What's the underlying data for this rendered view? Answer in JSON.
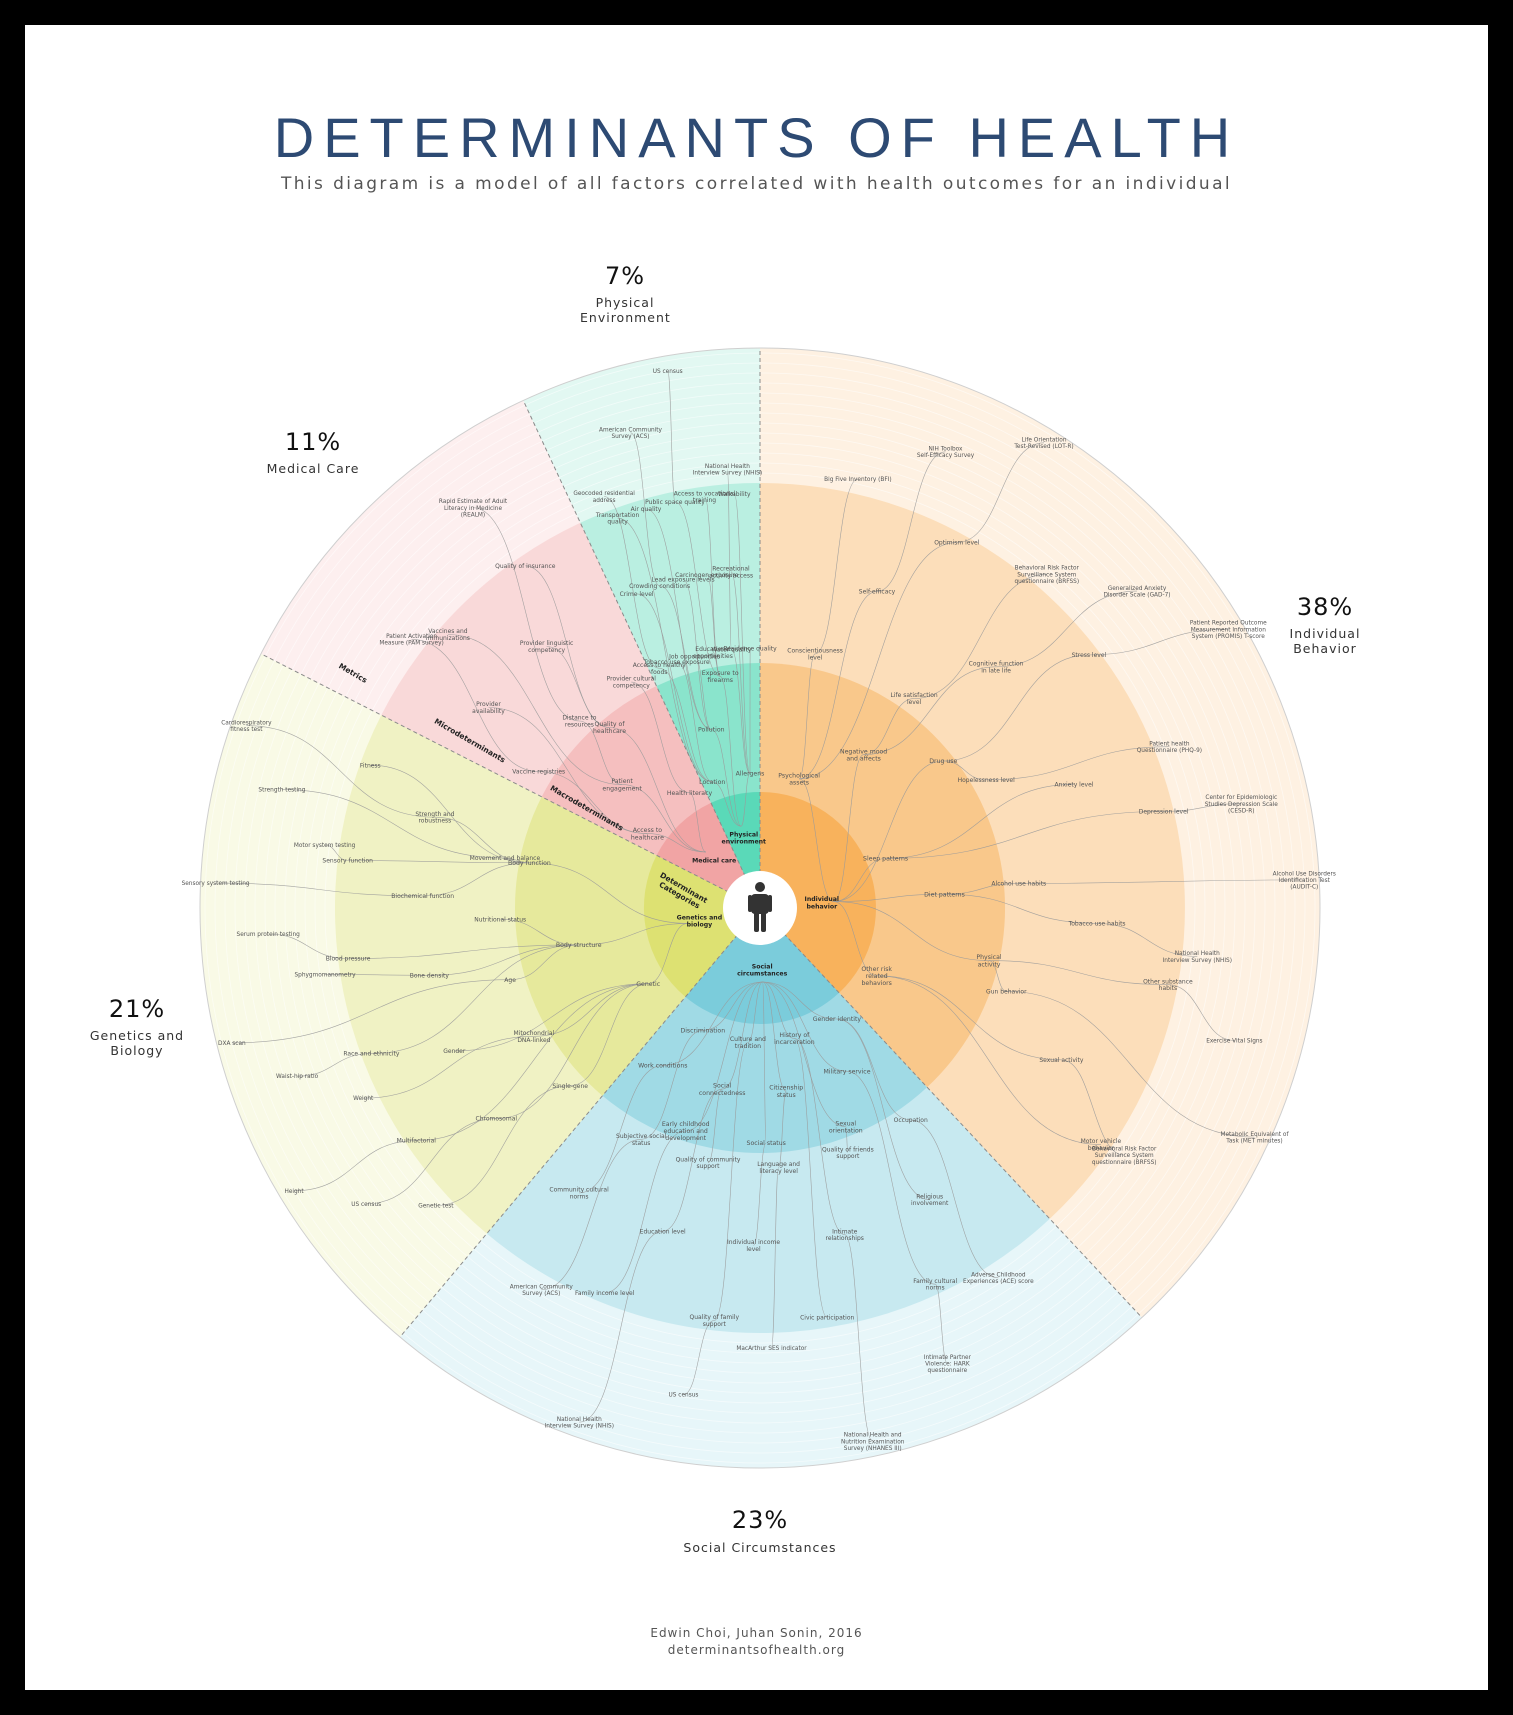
{
  "title": "DETERMINANTS OF HEALTH",
  "subtitle": "This diagram is a model of all factors correlated with health outcomes for an individual",
  "credit": {
    "authors": "Edwin Choi, Juhan Sonin, 2016",
    "url": "determinantsofhealth.org"
  },
  "ring_labels": {
    "metrics": "Metrics",
    "micro": "Microdeterminants",
    "macro": "Macrodeterminants",
    "categories": "Determinant Categories"
  },
  "sectors": [
    {
      "key": "individual",
      "percent": "38%",
      "label": "Individual Behavior",
      "category": "Individual behavior",
      "color": "#f6a94a"
    },
    {
      "key": "social",
      "percent": "23%",
      "label": "Social Circumstances",
      "category": "Social circumstances",
      "color": "#6cc6d7"
    },
    {
      "key": "genetics",
      "percent": "21%",
      "label": "Genetics and Biology",
      "category": "Genetics and biology",
      "color": "#d9de63"
    },
    {
      "key": "medical",
      "percent": "11%",
      "label": "Medical Care",
      "category": "Medical care",
      "color": "#f09a9a"
    },
    {
      "key": "physical",
      "percent": "7%",
      "label": "Physical Environment",
      "category": "Physical environment",
      "color": "#48d4b0"
    }
  ],
  "macro": {
    "individual": [
      "Psychological assets",
      "Negative mood and affects",
      "Drug use",
      "Sleep patterns",
      "Diet patterns",
      "Physical activity",
      "Other risk related behaviors"
    ],
    "social": [
      "Gender identity",
      "Military service",
      "Sexual orientation",
      "History of incarceration",
      "Citizenship status",
      "Social status",
      "Culture and tradition",
      "Social connectedness",
      "Early childhood education and development",
      "Discrimination",
      "Work conditions"
    ],
    "genetics": [
      "Genetic",
      "Body structure",
      "Body function"
    ],
    "medical": [
      "Access to healthcare",
      "Patient engagement",
      "Quality of healthcare",
      "Health literacy"
    ],
    "physical": [
      "Location",
      "Pollution",
      "Exposure to firearms",
      "Allergens"
    ]
  },
  "micro": {
    "individual": [
      "Conscientiousness level",
      "Self-efficacy",
      "Optimism level",
      "Life satisfaction level",
      "Cognitive function in late life",
      "Stress level",
      "Hopelessness level",
      "Anxiety level",
      "Depression level",
      "Alcohol use habits",
      "Tobacco use habits",
      "Other substance habits",
      "Gun behavior",
      "Sexual activity",
      "Motor vehicle behavior"
    ],
    "social": [
      "Occupation",
      "Religious involvement",
      "Family cultural norms",
      "Quality of friends support",
      "Intimate relationships",
      "Civic participation",
      "Language and literacy level",
      "Individual income level",
      "Quality of family support",
      "Quality of community support",
      "Education level",
      "Family income level",
      "Subjective social status",
      "Community cultural norms"
    ],
    "genetics": [
      "Single-gene",
      "Chromosomal",
      "Multifactorial",
      "Mitochondrial DNA-linked",
      "Gender",
      "Race and ethnicity",
      "Age",
      "Bone density",
      "Blood pressure",
      "Nutritional status",
      "Biochemical function",
      "Sensory function",
      "Movement and balance",
      "Strength and robustness",
      "Fitness"
    ],
    "medical": [
      "Vaccine registries",
      "Provider availability",
      "Vaccines and immunizations",
      "Distance to resources",
      "Provider linguistic competency",
      "Quality of insurance",
      "Provider cultural competency"
    ],
    "physical": [
      "Access to healthy foods",
      "Crime level",
      "Transportation quality",
      "Tobacco use exposure",
      "Crowding conditions",
      "Air quality",
      "Job opportunities",
      "Lead exposure levels",
      "Public space quality",
      "Educational opportunities",
      "Carcinogen exposure",
      "Access to vocational training",
      "Water quality",
      "Recreational activity access",
      "Walkability",
      "Residence quality"
    ]
  },
  "metrics": {
    "individual": [
      "Big Five Inventory (BFI)",
      "NIH Toolbox Self-Efficacy Survey",
      "Life Orientation Test-Revised (LOT-R)",
      "Behavioral Risk Factor Surveillance System questionnaire (BRFSS)",
      "Generalized Anxiety Disorder Scale (GAD-7)",
      "Patient Reported Outcome Measurement Information System (PROMIS) T-score",
      "Patient health Questionnaire (PHQ-9)",
      "Center for Epidemiologic Studies Depression Scale (CESD-R)",
      "Alcohol Use Disorders Identification Test (AUDIT-C)",
      "National Health Interview Survey (NHIS)",
      "Exercise Vital Signs",
      "Metabolic Equivalent of Task (MET minutes)",
      "Behavioral Risk Factor Surveillance System questionnaire (BRFSS)"
    ],
    "social": [
      "Adverse Childhood Experiences (ACE) score",
      "Intimate Partner Violence: HARK questionnaire",
      "National Health and Nutrition Examination Survey (NHANES III)",
      "MacArthur SES indicator",
      "US census",
      "National Health Interview Survey (NHIS)",
      "American Community Survey (ACS)"
    ],
    "genetics": [
      "Genetic test",
      "US census",
      "Height",
      "Weight",
      "Waist-hip ratio",
      "DXA scan",
      "Sphygmomanometry",
      "Serum protein testing",
      "Sensory system testing",
      "Motor system testing",
      "Strength testing",
      "Cardiorespiratory fitness test"
    ],
    "medical": [
      "Patient Activation Measure (PAM survey)",
      "Rapid Estimate of Adult Literacy in Medicine (REALM)"
    ],
    "physical": [
      "Geocoded residential address",
      "American Community Survey (ACS)",
      "US census",
      "National Health Interview Survey (NHIS)"
    ]
  }
}
